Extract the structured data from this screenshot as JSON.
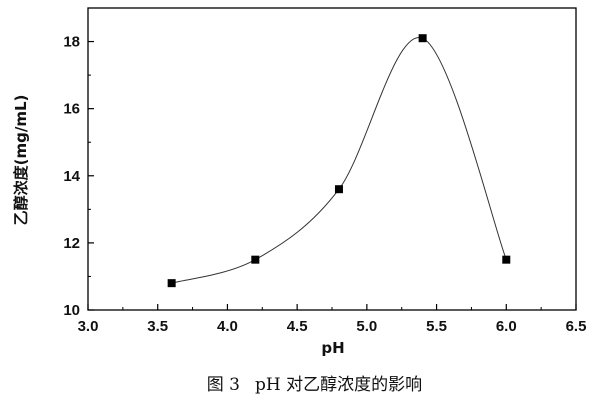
{
  "chart_data": {
    "type": "line",
    "xlabel": "pH",
    "ylabel": "乙醇浓度(mg/mL)",
    "xlim": [
      3.0,
      6.5
    ],
    "ylim": [
      10,
      19
    ],
    "xticks": [
      "3.0",
      "3.5",
      "4.0",
      "4.5",
      "5.0",
      "5.5",
      "6.0",
      "6.5"
    ],
    "yticks": [
      "10",
      "12",
      "14",
      "16",
      "18"
    ],
    "grid": false,
    "smooth_line": true,
    "marker": "square",
    "series": [
      {
        "x": [
          3.6,
          4.2,
          4.8,
          5.4,
          6.0
        ],
        "y": [
          10.8,
          11.5,
          13.6,
          18.1,
          11.5
        ]
      }
    ]
  },
  "caption": {
    "figure_label": "图 3",
    "text": "pH 对乙醇浓度的影响"
  },
  "colors": {
    "line": "#333333",
    "marker": "#000000",
    "axis": "#000000",
    "background": "#ffffff"
  }
}
